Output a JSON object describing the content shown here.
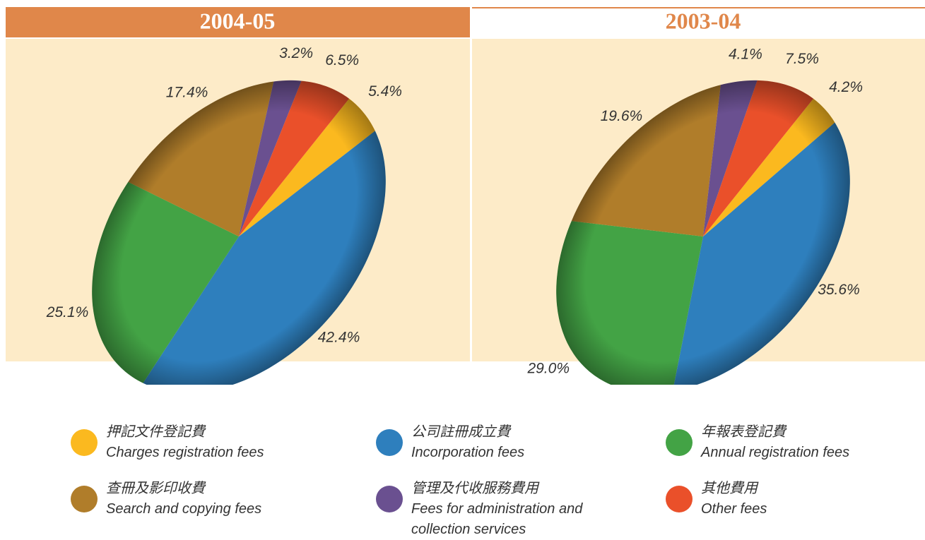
{
  "chart_data": [
    {
      "type": "pie",
      "title": "2004-05",
      "values": [
        5.4,
        42.4,
        25.1,
        17.4,
        3.2,
        6.5
      ],
      "value_labels": [
        "5.4%",
        "42.4%",
        "25.1%",
        "17.4%",
        "3.2%",
        "6.5%"
      ]
    },
    {
      "type": "pie",
      "title": "2003-04",
      "values": [
        4.2,
        35.6,
        29.0,
        19.6,
        4.1,
        7.5
      ],
      "value_labels": [
        "4.2%",
        "35.6%",
        "29.0%",
        "19.6%",
        "4.1%",
        "7.5%"
      ]
    }
  ],
  "legend": [
    {
      "name_zh": "押記文件登記費",
      "name_en": "Charges registration fees",
      "color": "#fbb91f"
    },
    {
      "name_zh": "公司註冊成立費",
      "name_en": "Incorporation fees",
      "color": "#2e7fbd"
    },
    {
      "name_zh": "年報表登記費",
      "name_en": "Annual registration fees",
      "color": "#43a345"
    },
    {
      "name_zh": "查冊及影印收費",
      "name_en": "Search and copying fees",
      "color": "#b07d2a"
    },
    {
      "name_zh": "管理及代收服務費用",
      "name_en": "Fees for administration and collection services",
      "color": "#6a5090"
    },
    {
      "name_zh": "其他費用",
      "name_en": "Other fees",
      "color": "#ea502a"
    }
  ]
}
